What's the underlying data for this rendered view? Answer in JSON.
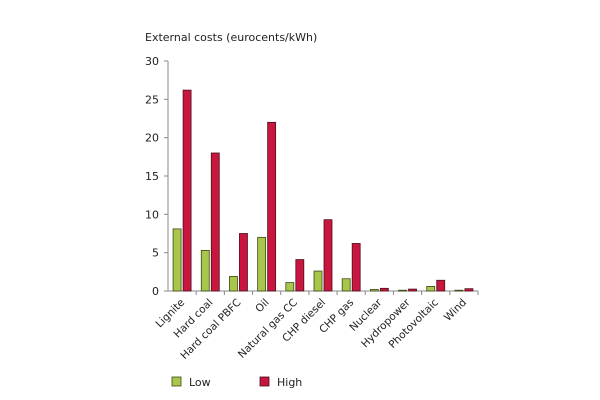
{
  "chart_data": {
    "type": "bar",
    "title": "External costs (eurocents/kWh)",
    "xlabel": "",
    "ylabel": "External costs (eurocents/kWh)",
    "ylim": [
      0,
      30
    ],
    "yticks": [
      0,
      5,
      10,
      15,
      20,
      25,
      30
    ],
    "categories": [
      "Lignite",
      "Hard coal",
      "Hard coal PBFC",
      "Oil",
      "Natural gas CC",
      "CHP diesel",
      "CHP gas",
      "Nuclear",
      "Hydropower",
      "Photovoltaic",
      "Wind"
    ],
    "series": [
      {
        "name": "Low",
        "color": "#a8c64a",
        "values": [
          8.1,
          5.3,
          1.9,
          7.0,
          1.1,
          2.6,
          1.6,
          0.2,
          0.1,
          0.6,
          0.1
        ]
      },
      {
        "name": "High",
        "color": "#c8163f",
        "values": [
          26.2,
          18.0,
          7.5,
          22.0,
          4.1,
          9.3,
          6.2,
          0.35,
          0.25,
          1.4,
          0.3
        ]
      }
    ],
    "legend": {
      "position": "bottom-left"
    }
  }
}
